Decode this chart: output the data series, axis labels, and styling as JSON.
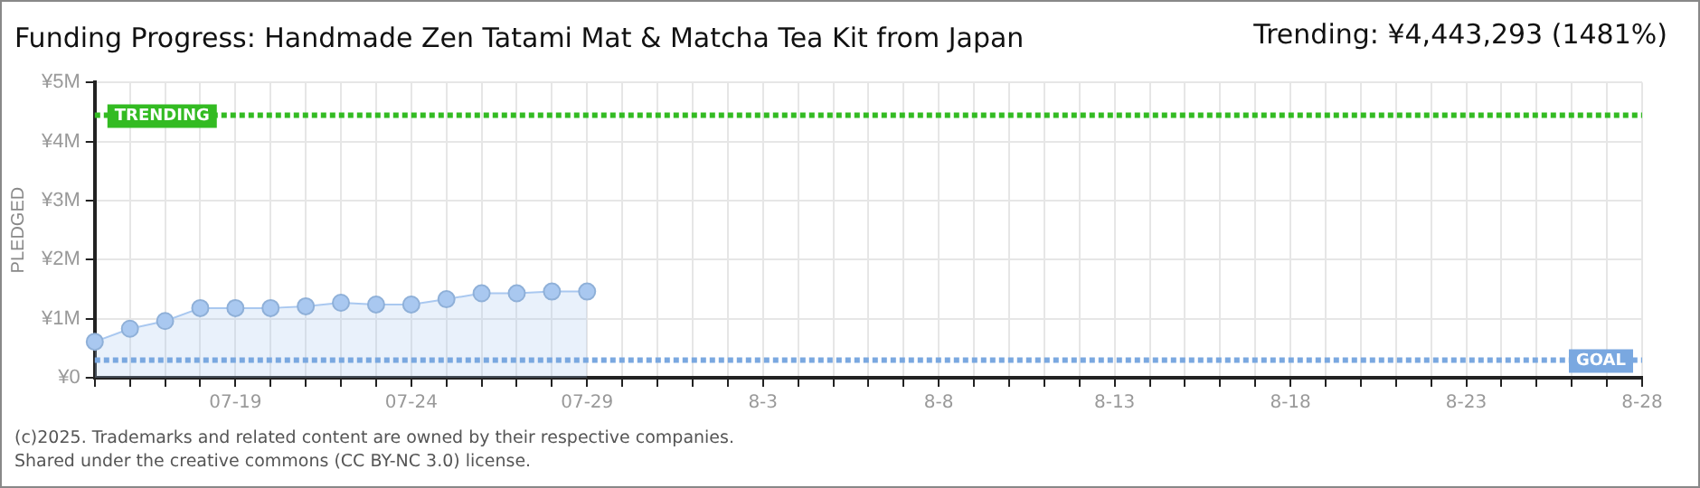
{
  "chart_data": {
    "type": "area",
    "title": "Funding Progress: Handmade Zen Tatami Mat & Matcha Tea Kit from Japan",
    "subtitle": "Trending:  ¥4,443,293 (1481%)",
    "ylabel": "PLEDGED",
    "categories": [
      null,
      null,
      null,
      null,
      "07-19",
      null,
      null,
      null,
      null,
      "07-24",
      null,
      null,
      null,
      null,
      "07-29",
      null,
      null,
      null,
      null,
      "8-3",
      null,
      null,
      null,
      null,
      "8-8",
      null,
      null,
      null,
      null,
      "8-13",
      null,
      null,
      null,
      null,
      "8-18",
      null,
      null,
      null,
      null,
      "8-23",
      null,
      null,
      null,
      null,
      "8-28"
    ],
    "series": [
      {
        "color": "#a9c8f0",
        "values": [
          610000,
          830000,
          960000,
          1180000,
          1180000,
          1180000,
          1210000,
          1270000,
          1240000,
          1240000,
          1330000,
          1430000,
          1430000,
          1460000,
          1460000,
          null,
          null,
          null,
          null,
          null,
          null,
          null,
          null,
          null,
          null,
          null,
          null,
          null,
          null,
          null,
          null,
          null,
          null,
          null,
          null,
          null,
          null,
          null,
          null,
          null,
          null,
          null,
          null,
          null,
          null
        ]
      }
    ],
    "ylim": [
      0,
      5000000
    ],
    "yticks": [
      {
        "value": 0,
        "label": "¥0"
      },
      {
        "value": 1000000,
        "label": "¥1M"
      },
      {
        "value": 2000000,
        "label": "¥2M"
      },
      {
        "value": 3000000,
        "label": "¥3M"
      },
      {
        "value": 4000000,
        "label": "¥4M"
      },
      {
        "value": 5000000,
        "label": "¥5M"
      }
    ],
    "ref_lines": [
      {
        "axis": "y",
        "value": 4443293,
        "label": "TRENDING",
        "color": "#33bb22",
        "line_style": "dotted"
      },
      {
        "axis": "y",
        "value": 300000,
        "label": "GOAL",
        "color": "#7aa8e0",
        "line_style": "dotted"
      }
    ],
    "grid": true,
    "legend": false,
    "marker": "circle",
    "annotations": [
      "(c)2025. Trademarks and related content are owned by their respective companies.",
      "Shared under the creative commons (CC BY-NC 3.0) license."
    ]
  }
}
